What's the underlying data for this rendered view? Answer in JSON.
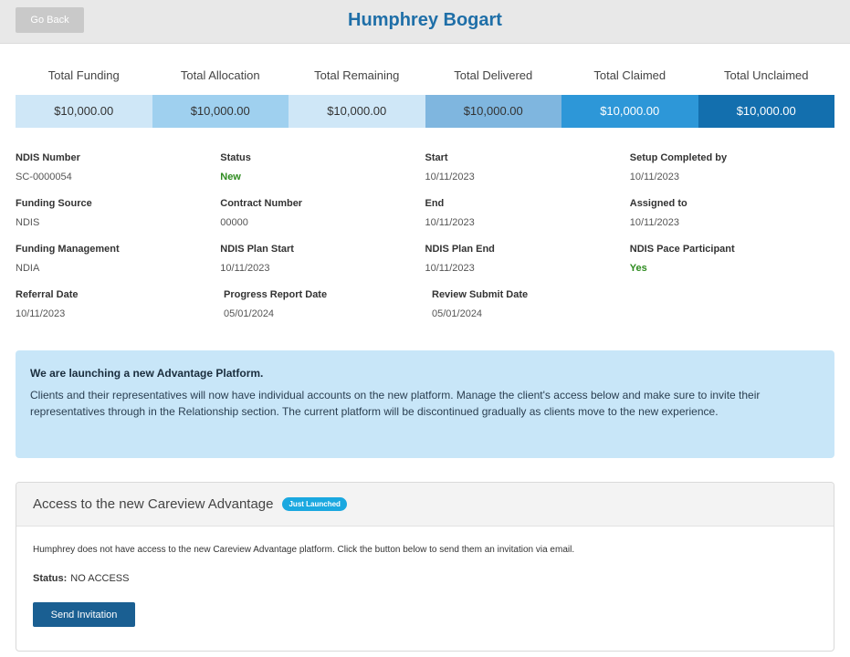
{
  "header": {
    "back_label": "Go Back",
    "title": "Humphrey Bogart"
  },
  "totals": [
    {
      "label": "Total Funding",
      "value": "$10,000.00",
      "bg": "#cfe7f7",
      "fg": "#333333"
    },
    {
      "label": "Total Allocation",
      "value": "$10,000.00",
      "bg": "#9fd0ef",
      "fg": "#333333"
    },
    {
      "label": "Total Remaining",
      "value": "$10,000.00",
      "bg": "#cfe7f7",
      "fg": "#333333"
    },
    {
      "label": "Total Delivered",
      "value": "$10,000.00",
      "bg": "#7fb6df",
      "fg": "#333333"
    },
    {
      "label": "Total Claimed",
      "value": "$10,000.00",
      "bg": "#2d97d8",
      "fg": "#ffffff"
    },
    {
      "label": "Total Unclaimed",
      "value": "$10,000.00",
      "bg": "#136fae",
      "fg": "#ffffff"
    }
  ],
  "info": {
    "ndis_number": {
      "label": "NDIS Number",
      "value": "SC-0000054"
    },
    "status": {
      "label": "Status",
      "value": "New"
    },
    "start": {
      "label": "Start",
      "value": "10/11/2023"
    },
    "setup_completed_by": {
      "label": "Setup Completed by",
      "value": "10/11/2023"
    },
    "funding_source": {
      "label": "Funding Source",
      "value": "NDIS"
    },
    "contract_number": {
      "label": "Contract Number",
      "value": "00000"
    },
    "end": {
      "label": "End",
      "value": "10/11/2023"
    },
    "assigned_to": {
      "label": "Assigned to",
      "value": "10/11/2023"
    },
    "funding_management": {
      "label": "Funding Management",
      "value": "NDIA"
    },
    "ndis_plan_start": {
      "label": "NDIS Plan Start",
      "value": "10/11/2023"
    },
    "ndis_plan_end": {
      "label": "NDIS Plan End",
      "value": "10/11/2023"
    },
    "ndis_pace_participant": {
      "label": "NDIS Pace Participant",
      "value": "Yes"
    },
    "referral_date": {
      "label": "Referral Date",
      "value": "10/11/2023"
    },
    "progress_report_date": {
      "label": "Progress Report Date",
      "value": "05/01/2024"
    },
    "review_submit_date": {
      "label": "Review Submit Date",
      "value": "05/01/2024"
    }
  },
  "notice": {
    "title": "We are launching a new Advantage Platform.",
    "body": "Clients and their representatives will now have individual accounts on the new platform. Manage the client's access below and make sure to invite their representatives through in the Relationship section. The current platform will be discontinued gradually as clients move to the new experience."
  },
  "access": {
    "title": "Access to the new Careview Advantage",
    "badge": "Just Launched",
    "description": "Humphrey does not have access to the new Careview Advantage platform. Click the button below to send them an invitation via email.",
    "status_label": "Status:",
    "status_value": "NO ACCESS",
    "button_label": "Send Invitation"
  },
  "colors": {
    "title_blue": "#1f6fa8",
    "green_status": "#2e8b1f",
    "notice_bg": "#c8e6f8",
    "button_blue": "#1a5f92",
    "badge_blue": "#1aa8e0"
  }
}
